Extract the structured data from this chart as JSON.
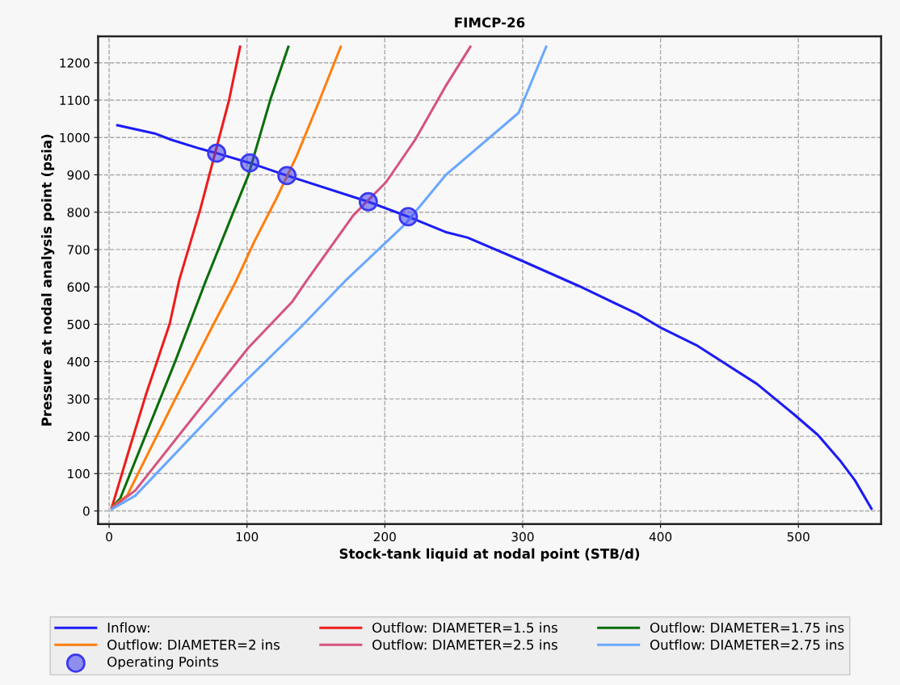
{
  "chart_data": {
    "type": "line",
    "title": "FIMCP-26",
    "xlabel": "Stock-tank liquid at nodal point (STB/d)",
    "ylabel": "Pressure at nodal analysis point (psia)",
    "xlim": [
      -8,
      560
    ],
    "ylim": [
      -35,
      1271
    ],
    "xticks": [
      0,
      100,
      200,
      300,
      400,
      500
    ],
    "yticks": [
      0,
      100,
      200,
      300,
      400,
      500,
      600,
      700,
      800,
      900,
      1000,
      1100,
      1200
    ],
    "grid": true,
    "legend": "bottom",
    "marker": "none",
    "line_style": "solid",
    "series": [
      {
        "name": "Inflow:",
        "color": "#1c1cf5",
        "x": [
          6,
          33,
          45,
          66,
          78,
          102,
          129,
          188,
          217,
          244,
          260,
          300,
          341,
          383,
          401,
          426,
          470,
          497,
          514,
          530,
          541,
          553
        ],
        "values": [
          1033,
          1011,
          994,
          970,
          958,
          932,
          898,
          828,
          788,
          747,
          732,
          669,
          602,
          528,
          489,
          444,
          340,
          258,
          204,
          136,
          82,
          6
        ]
      },
      {
        "name": "Outflow: DIAMETER=1.5 ins",
        "color": "#ee1c1c",
        "x": [
          2,
          15,
          27,
          44,
          51,
          66,
          87,
          95
        ],
        "values": [
          10,
          170,
          315,
          502,
          620,
          806,
          1100,
          1243
        ]
      },
      {
        "name": "Outflow: DIAMETER=1.75 ins",
        "color": "#0a6e0a",
        "x": [
          2,
          8,
          48,
          70,
          90,
          101,
          117,
          130
        ],
        "values": [
          10,
          33,
          401,
          615,
          799,
          899,
          1102,
          1243
        ]
      },
      {
        "name": "Outflow: DIAMETER=2 ins",
        "color": "#ff7f0e",
        "x": [
          2,
          13,
          47,
          76,
          92,
          105,
          121,
          136,
          152,
          168
        ],
        "values": [
          10,
          41,
          293,
          502,
          615,
          719,
          834,
          950,
          1094,
          1243
        ]
      },
      {
        "name": "Outflow: DIAMETER=2.5 ins",
        "color": "#d6537f",
        "x": [
          2,
          19,
          70,
          101,
          133,
          143,
          177,
          201,
          222,
          244,
          262
        ],
        "values": [
          8,
          55,
          293,
          437,
          561,
          615,
          791,
          881,
          994,
          1137,
          1243
        ]
      },
      {
        "name": "Outflow: DIAMETER=2.75 ins",
        "color": "#6aa8ff",
        "x": [
          2,
          19,
          86,
          140,
          171,
          215,
          244,
          297,
          317
        ],
        "values": [
          5,
          41,
          301,
          496,
          615,
          769,
          899,
          1066,
          1243
        ]
      },
      {
        "name": "Operating Points",
        "type": "scatter",
        "marker": "circle",
        "color": "#3a3af0",
        "x": [
          78,
          102,
          129,
          188,
          217
        ],
        "values": [
          958,
          932,
          898,
          828,
          788
        ]
      }
    ]
  }
}
